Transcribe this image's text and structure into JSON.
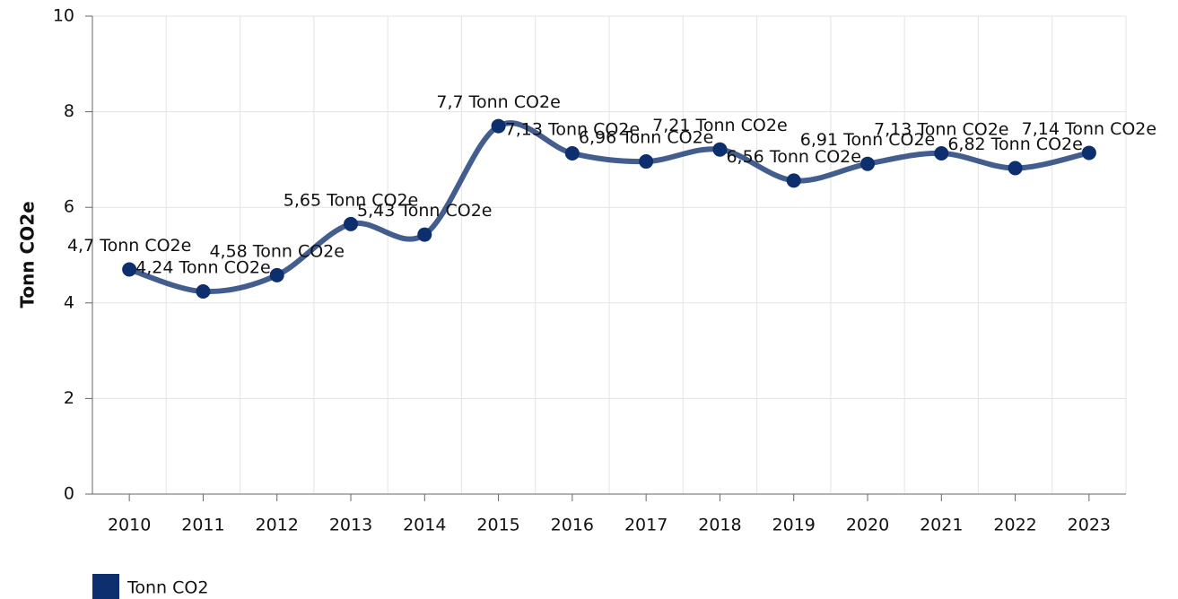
{
  "chart_data": {
    "type": "line",
    "ylabel": "Tonn CO2e",
    "categories": [
      "2010",
      "2011",
      "2012",
      "2013",
      "2014",
      "2015",
      "2016",
      "2017",
      "2018",
      "2019",
      "2020",
      "2021",
      "2022",
      "2023"
    ],
    "series": [
      {
        "name": "Tonn CO2",
        "color": "#0d2f6e",
        "values": [
          4.7,
          4.24,
          4.58,
          5.65,
          5.43,
          7.7,
          7.13,
          6.96,
          7.21,
          6.56,
          6.91,
          7.13,
          6.82,
          7.14
        ],
        "value_labels": [
          "4,7 Tonn CO2e",
          "4,24 Tonn CO2e",
          "4,58 Tonn CO2e",
          "5,65 Tonn CO2e",
          "5,43 Tonn CO2e",
          "7,7 Tonn CO2e",
          "7,13 Tonn CO2e",
          "6,96 Tonn CO2e",
          "7,21 Tonn CO2e",
          "6,56 Tonn CO2e",
          "6,91 Tonn CO2e",
          "7,13 Tonn CO2e",
          "6,82 Tonn CO2e",
          "7,14 Tonn CO2e"
        ]
      }
    ],
    "ylim": [
      0,
      10
    ],
    "yticks": [
      0,
      2,
      4,
      6,
      8,
      10
    ],
    "grid": true,
    "smooth": true
  }
}
